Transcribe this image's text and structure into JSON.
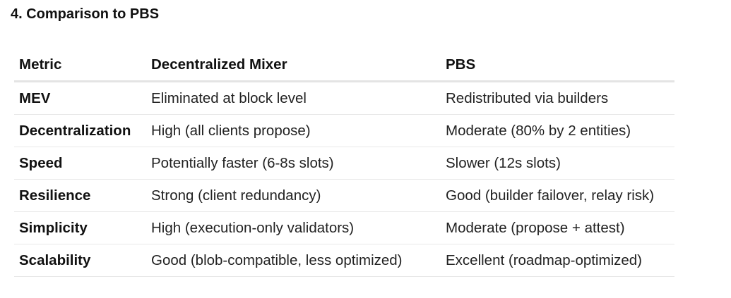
{
  "section": {
    "heading": "4. Comparison to PBS"
  },
  "table": {
    "headers": {
      "metric": "Metric",
      "mixer": "Decentralized Mixer",
      "pbs": "PBS"
    },
    "rows": [
      {
        "metric": "MEV",
        "mixer": "Eliminated at block level",
        "pbs": "Redistributed via builders"
      },
      {
        "metric": "Decentralization",
        "mixer": "High (all clients propose)",
        "pbs": "Moderate (80% by 2 entities)"
      },
      {
        "metric": "Speed",
        "mixer": "Potentially faster (6-8s slots)",
        "pbs": "Slower (12s slots)"
      },
      {
        "metric": "Resilience",
        "mixer": "Strong (client redundancy)",
        "pbs": "Good (builder failover, relay risk)"
      },
      {
        "metric": "Simplicity",
        "mixer": "High (execution-only validators)",
        "pbs": "Moderate (propose + attest)"
      },
      {
        "metric": "Scalability",
        "mixer": "Good (blob-compatible, less optimized)",
        "pbs": "Excellent (roadmap-optimized)"
      }
    ]
  }
}
